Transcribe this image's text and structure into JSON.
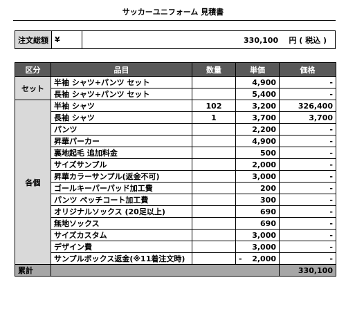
{
  "title": "サッカーユニフォーム 見積書",
  "total": {
    "label": "注文総額",
    "currency_symbol": "¥",
    "amount": "330,100",
    "suffix": "円 ( 税込 )"
  },
  "table": {
    "headers": [
      "区分",
      "品目",
      "数量",
      "単価",
      "価格"
    ],
    "groups": [
      {
        "category": "セット",
        "rows": [
          {
            "item": "半袖 シャツ+パンツ セット",
            "qty": "",
            "unit": "4,900",
            "price": "-"
          },
          {
            "item": "長袖 シャツ+パンツ セット",
            "qty": "",
            "unit": "5,400",
            "price": "-"
          }
        ]
      },
      {
        "category": "各個",
        "rows": [
          {
            "item": "半袖 シャツ",
            "qty": "102",
            "unit": "3,200",
            "price": "326,400"
          },
          {
            "item": "長袖 シャツ",
            "qty": "1",
            "unit": "3,700",
            "price": "3,700"
          },
          {
            "item": "パンツ",
            "qty": "",
            "unit": "2,200",
            "price": "-"
          },
          {
            "item": "昇華パーカー",
            "qty": "",
            "unit": "4,900",
            "price": "-"
          },
          {
            "item": "裏地起毛 追加料金",
            "qty": "",
            "unit": "500",
            "price": "-"
          },
          {
            "item": "サイズサンプル",
            "qty": "",
            "unit": "2,000",
            "price": "-"
          },
          {
            "item": "昇華カラーサンプル(返金不可)",
            "qty": "",
            "unit": "3,000",
            "price": "-"
          },
          {
            "item": "ゴールキーパーパッド加工費",
            "qty": "",
            "unit": "200",
            "price": "-"
          },
          {
            "item": "パンツ ペッチコート加工費",
            "qty": "",
            "unit": "300",
            "price": "-"
          },
          {
            "item": "オリジナルソックス (20足以上)",
            "qty": "",
            "unit": "690",
            "price": "-"
          },
          {
            "item": "無地ソックス",
            "qty": "",
            "unit": "690",
            "price": "-"
          },
          {
            "item": "サイズカスタム",
            "qty": "",
            "unit": "3,000",
            "price": "-"
          },
          {
            "item": "デザイン費",
            "qty": "",
            "unit": "3,000",
            "price": "-"
          },
          {
            "item": "サンプルボックス返金(※11着注文時)",
            "qty": "",
            "unit": "2,000",
            "unit_prefix": "-",
            "price": "-"
          }
        ]
      }
    ],
    "sum_label": "累計",
    "sum_value": "330,100"
  }
}
